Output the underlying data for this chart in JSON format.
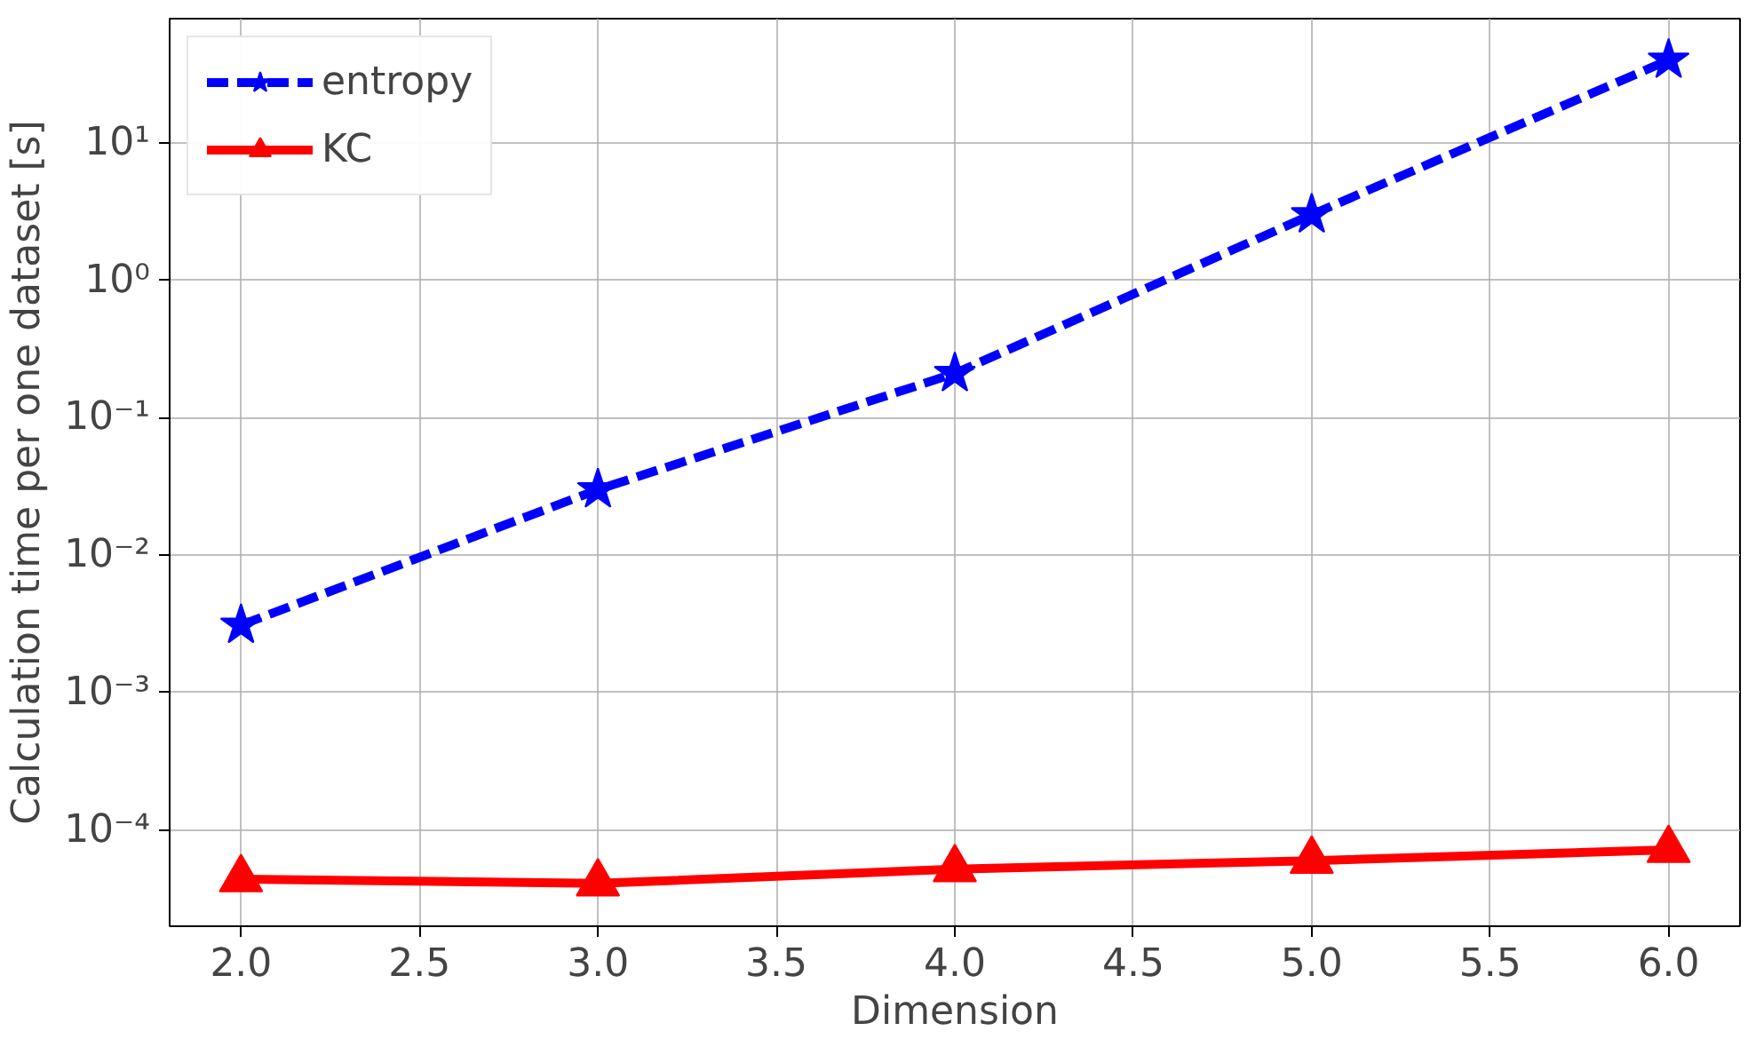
{
  "chart_data": {
    "type": "line",
    "xlabel": "Dimension",
    "ylabel": "Calculation time per one dataset [s]",
    "x": [
      2,
      3,
      4,
      5,
      6
    ],
    "series": [
      {
        "name": "entropy",
        "color": "#0000ff",
        "marker": "star",
        "line_style": "dashed",
        "values": [
          0.0031,
          0.03,
          0.21,
          3.0,
          40
        ]
      },
      {
        "name": "KC",
        "color": "#ff0000",
        "marker": "triangle",
        "line_style": "solid",
        "values": [
          4.4e-05,
          4.1e-05,
          5.2e-05,
          6e-05,
          7.2e-05
        ]
      }
    ],
    "log": "y",
    "xlim": [
      1.8,
      6.2
    ],
    "ylim": [
      2e-05,
      80
    ],
    "xticks": [
      {
        "value": 2,
        "label": "2.0"
      },
      {
        "value": 2.5,
        "label": "2.5"
      },
      {
        "value": 3,
        "label": "3.0"
      },
      {
        "value": 3.5,
        "label": "3.5"
      },
      {
        "value": 4,
        "label": "4.0"
      },
      {
        "value": 4.5,
        "label": "4.5"
      },
      {
        "value": 5,
        "label": "5.0"
      },
      {
        "value": 5.5,
        "label": "5.5"
      },
      {
        "value": 6,
        "label": "6.0"
      }
    ],
    "yticks": [
      {
        "value": 0.0001,
        "label": "10⁻⁴"
      },
      {
        "value": 0.001,
        "label": "10⁻³"
      },
      {
        "value": 0.01,
        "label": "10⁻²"
      },
      {
        "value": 0.1,
        "label": "10⁻¹"
      },
      {
        "value": 1,
        "label": "10⁰"
      },
      {
        "value": 10,
        "label": "10¹"
      }
    ],
    "grid": true,
    "legend": "top left"
  }
}
